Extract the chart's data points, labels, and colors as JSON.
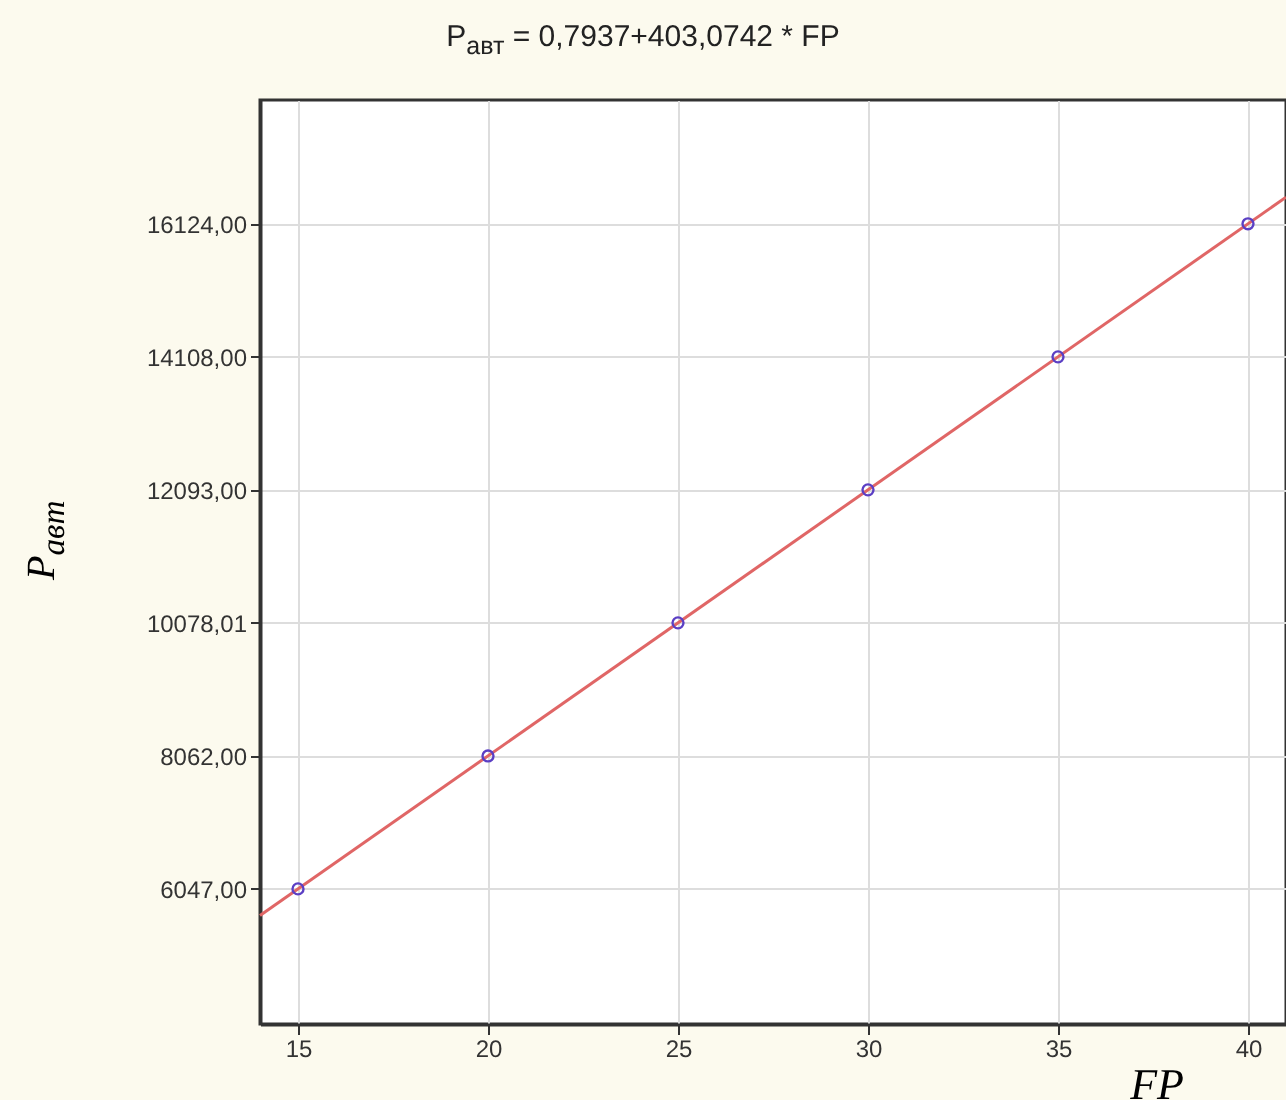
{
  "chart_data": {
    "type": "scatter",
    "title": "P$_{авт}$ = 0,7937+403,0742 * FP",
    "xlabel": "FP",
    "ylabel": "P$_{авт}$",
    "x": [
      15,
      20,
      25,
      30,
      35,
      40
    ],
    "series": [
      {
        "color": "#5b3fc4",
        "marker": "circle",
        "values": [
          6047,
          8062,
          10078.01,
          12093,
          14108,
          16124
        ]
      },
      {
        "type": "line",
        "color": "#e06666",
        "marker": "none",
        "x": [
          14,
          41
        ],
        "values": [
          5644,
          16527
        ]
      }
    ],
    "xlim": [
      14,
      41
    ],
    "xticks": [
      15,
      20,
      25,
      30,
      35,
      40
    ],
    "ylim": [
      4000,
      18000
    ],
    "yticks": [
      {
        "value": 6047,
        "label": "6047,00"
      },
      {
        "value": 8062,
        "label": "8062,00"
      },
      {
        "value": 10078.01,
        "label": "10078,01"
      },
      {
        "value": 12093,
        "label": "12093,00"
      },
      {
        "value": 14108,
        "label": "14108,00"
      },
      {
        "value": 16124,
        "label": "16124,00"
      }
    ],
    "grid": true,
    "line_style": "solid"
  }
}
